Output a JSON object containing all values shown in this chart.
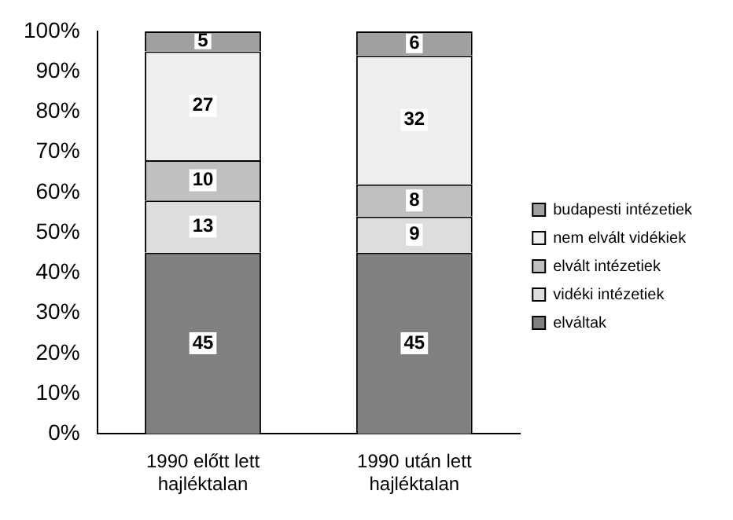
{
  "chart_data": {
    "type": "bar",
    "stacked": true,
    "categories": [
      "1990 előtt lett hajléktalan",
      "1990 után lett hajléktalan"
    ],
    "series": [
      {
        "name": "elváltak",
        "color": "#808080",
        "values": [
          45,
          45
        ]
      },
      {
        "name": "vidéki intézetiek",
        "color": "#dddddd",
        "values": [
          13,
          9
        ]
      },
      {
        "name": "elvált intézetiek",
        "color": "#c0c0c0",
        "values": [
          10,
          8
        ]
      },
      {
        "name": "nem elvált vidékiek",
        "color": "#eeeeee",
        "values": [
          27,
          32
        ]
      },
      {
        "name": "budapesti intézetiek",
        "color": "#a0a0a0",
        "values": [
          5,
          6
        ]
      }
    ],
    "ylim": [
      0,
      100
    ],
    "yticks": [
      {
        "value": 0,
        "label": "0%"
      },
      {
        "value": 10,
        "label": "10%"
      },
      {
        "value": 20,
        "label": "20%"
      },
      {
        "value": 30,
        "label": "30%"
      },
      {
        "value": 40,
        "label": "40%"
      },
      {
        "value": 50,
        "label": "50%"
      },
      {
        "value": 60,
        "label": "60%"
      },
      {
        "value": 70,
        "label": "70%"
      },
      {
        "value": 80,
        "label": "80%"
      },
      {
        "value": 90,
        "label": "90%"
      },
      {
        "value": 100,
        "label": "100%"
      }
    ],
    "data_labels": true,
    "legend": "right",
    "grid": false
  }
}
